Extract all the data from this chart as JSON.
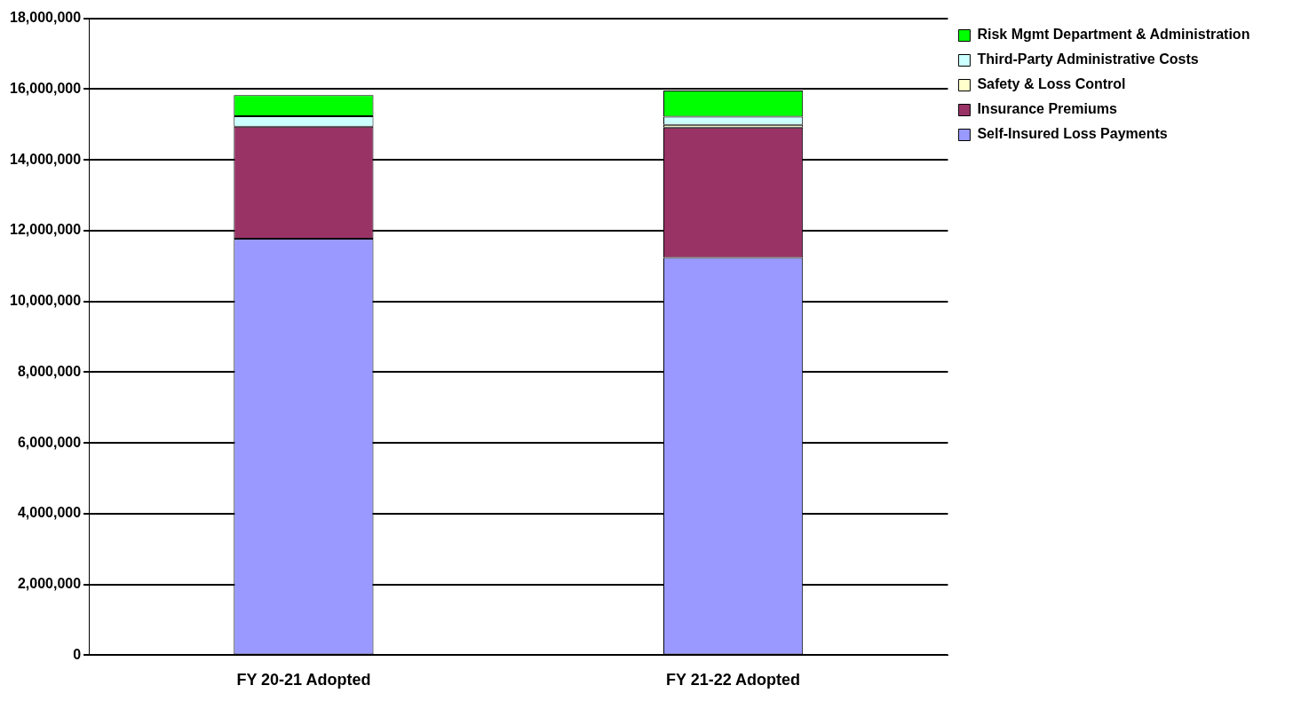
{
  "chart_data": {
    "type": "bar",
    "stacked": true,
    "categories": [
      "FY 20-21 Adopted",
      "FY 21-22 Adopted"
    ],
    "series": [
      {
        "name": "Self-Insured Loss Payments",
        "color": "#9999ff",
        "values": [
          11770000,
          11230000
        ]
      },
      {
        "name": "Insurance Premiums",
        "color": "#993366",
        "values": [
          3170000,
          3680000
        ]
      },
      {
        "name": "Safety & Loss Control",
        "color": "#ffffcc",
        "values": [
          null,
          80000
        ]
      },
      {
        "name": "Third-Party Administrative Costs",
        "color": "#ccffff",
        "values": [
          290000,
          230000
        ]
      },
      {
        "name": "Risk Mgmt Department & Administration",
        "color": "#00ff00",
        "values": [
          600000,
          740000
        ]
      }
    ],
    "ylim": [
      0,
      18000000
    ],
    "yticks": [
      0,
      {
        "value": 2000000,
        "label": "2,000,000"
      },
      {
        "value": 4000000,
        "label": "4,000,000"
      },
      {
        "value": 6000000,
        "label": "6,000,000"
      },
      {
        "value": 8000000,
        "label": "8,000,000"
      },
      {
        "value": 10000000,
        "label": "10,000,000"
      },
      {
        "value": 12000000,
        "label": "12,000,000"
      },
      {
        "value": 14000000,
        "label": "14,000,000"
      },
      {
        "value": 16000000,
        "label": "16,000,000"
      },
      {
        "value": 18000000,
        "label": "18,000,000"
      }
    ],
    "grid": "y",
    "legend": "top right"
  }
}
